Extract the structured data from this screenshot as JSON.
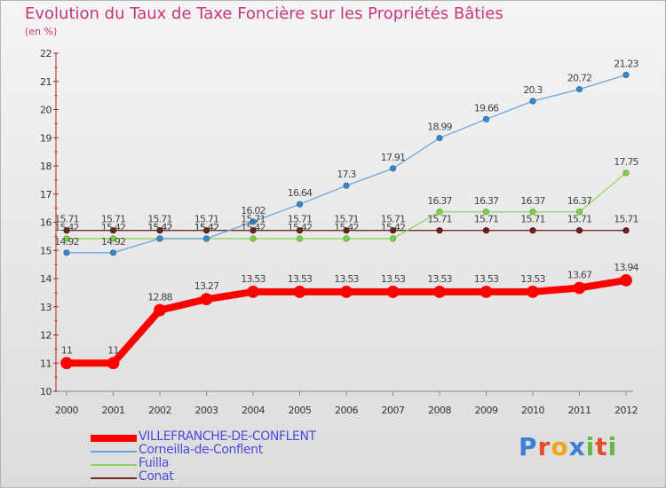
{
  "chart_data": {
    "type": "line",
    "title": "Evolution du Taux de Taxe Foncière sur les Propriétés Bâties",
    "ylabel": "(en %)",
    "xlabel": "",
    "ylim": [
      10,
      22
    ],
    "yticks": [
      "10",
      "11",
      "12",
      "13",
      "14",
      "15",
      "16",
      "17",
      "18",
      "19",
      "20",
      "21",
      "22"
    ],
    "categories": [
      "2000",
      "2001",
      "2002",
      "2003",
      "2004",
      "2005",
      "2006",
      "2007",
      "2008",
      "2009",
      "2010",
      "2011",
      "2012"
    ],
    "series": [
      {
        "name": "VILLEFRANCHE-DE-CONFLENT",
        "color": "#ff0000",
        "values": [
          11,
          11,
          12.88,
          13.27,
          13.53,
          13.53,
          13.53,
          13.53,
          13.53,
          13.53,
          13.53,
          13.67,
          13.94
        ],
        "labels": [
          "11",
          "11",
          "12.88",
          "13.27",
          "13.53",
          "13.53",
          "13.53",
          "13.53",
          "13.53",
          "13.53",
          "13.53",
          "13.67",
          "13.94"
        ]
      },
      {
        "name": "Corneilla-de-Conflent",
        "color": "#6aa6dc",
        "values": [
          14.92,
          14.92,
          15.42,
          15.42,
          16.02,
          16.64,
          17.3,
          17.91,
          18.99,
          19.66,
          20.3,
          20.72,
          21.23
        ],
        "labels": [
          "14.92",
          "14.92",
          "15.42",
          "15.42",
          "16.02",
          "16.64",
          "17.3",
          "17.91",
          "18.99",
          "19.66",
          "20.3",
          "20.72",
          "21.23"
        ]
      },
      {
        "name": "Fuilla",
        "color": "#8ed55c",
        "values": [
          15.42,
          15.42,
          15.42,
          15.42,
          15.42,
          15.42,
          15.42,
          15.42,
          16.37,
          16.37,
          16.37,
          16.37,
          17.75
        ],
        "labels": [
          "15.42",
          "15.42",
          "15.42",
          "15.42",
          "15.42",
          "15.42",
          "15.42",
          "15.42",
          "16.37",
          "16.37",
          "16.37",
          "16.37",
          "17.75"
        ]
      },
      {
        "name": "Conat",
        "color": "#7a2a2a",
        "values": [
          15.71,
          15.71,
          15.71,
          15.71,
          15.71,
          15.71,
          15.71,
          15.71,
          15.71,
          15.71,
          15.71,
          15.71,
          15.71
        ],
        "labels": [
          "15.71",
          "15.71",
          "15.71",
          "15.71",
          "15.71",
          "15.71",
          "15.71",
          "15.71",
          "15.71",
          "15.71",
          "15.71",
          "15.71",
          "15.71"
        ]
      }
    ],
    "legend": "bottom-left",
    "grid": false
  },
  "brand": {
    "text": "Proxiti",
    "letters": [
      {
        "ch": "P",
        "color": "#3d7fd6"
      },
      {
        "ch": "r",
        "color": "#e84b2a"
      },
      {
        "ch": "o",
        "color": "#f2a417"
      },
      {
        "ch": "x",
        "color": "#3d7fd6"
      },
      {
        "ch": "i",
        "color": "#66b844"
      },
      {
        "ch": "t",
        "color": "#e84b2a"
      },
      {
        "ch": "i",
        "color": "#66b844"
      }
    ]
  }
}
